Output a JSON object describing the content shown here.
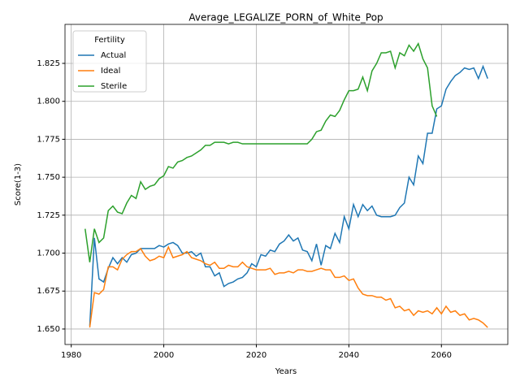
{
  "chart_data": {
    "type": "line",
    "title": "Average_LEGALIZE_PORN_of_White_Pop",
    "xlabel": "Years",
    "ylabel": "Score(1-3)",
    "x": [
      1983,
      1984,
      1985,
      1986,
      1987,
      1988,
      1989,
      1990,
      1991,
      1992,
      1993,
      1994,
      1995,
      1996,
      1997,
      1998,
      1999,
      2000,
      2001,
      2002,
      2003,
      2004,
      2005,
      2006,
      2007,
      2008,
      2009,
      2010,
      2011,
      2012,
      2013,
      2014,
      2015,
      2016,
      2017,
      2018,
      2019,
      2020,
      2021,
      2022,
      2023,
      2024,
      2025,
      2026,
      2027,
      2028,
      2029,
      2030,
      2031,
      2032,
      2033,
      2034,
      2035,
      2036,
      2037,
      2038,
      2039,
      2040,
      2041,
      2042,
      2043,
      2044,
      2045,
      2046,
      2047,
      2048,
      2049,
      2050,
      2051,
      2052,
      2053,
      2054,
      2055,
      2056,
      2057,
      2058,
      2059,
      2060,
      2061,
      2062,
      2063,
      2064,
      2065,
      2066,
      2067,
      2068,
      2069,
      2070
    ],
    "series": [
      {
        "name": "Actual",
        "color": "#1f77b4",
        "values": [
          null,
          1.652,
          1.71,
          1.683,
          1.681,
          1.69,
          1.697,
          1.693,
          1.697,
          1.694,
          1.699,
          1.7,
          1.703,
          1.703,
          1.703,
          1.703,
          1.705,
          1.704,
          1.706,
          1.707,
          1.705,
          1.7,
          1.7,
          1.701,
          1.698,
          1.7,
          1.691,
          1.691,
          1.685,
          1.687,
          1.678,
          1.68,
          1.681,
          1.683,
          1.684,
          1.687,
          1.693,
          1.691,
          1.699,
          1.698,
          1.702,
          1.701,
          1.706,
          1.708,
          1.712,
          1.708,
          1.71,
          1.702,
          1.701,
          1.695,
          1.706,
          1.692,
          1.705,
          1.703,
          1.713,
          1.707,
          1.724,
          1.716,
          1.732,
          1.724,
          1.732,
          1.728,
          1.731,
          1.725,
          1.724,
          1.724,
          1.724,
          1.725,
          1.73,
          1.733,
          1.75,
          1.745,
          1.764,
          1.759,
          1.779,
          1.779,
          1.795,
          1.797,
          1.808,
          1.813,
          1.817,
          1.819,
          1.822,
          1.821,
          1.822,
          1.815,
          1.823,
          1.815
        ]
      },
      {
        "name": "Ideal",
        "color": "#ff7f0e",
        "values": [
          null,
          1.651,
          1.674,
          1.673,
          1.676,
          1.691,
          1.691,
          1.689,
          1.696,
          1.699,
          1.701,
          1.701,
          1.703,
          1.698,
          1.695,
          1.696,
          1.698,
          1.697,
          1.704,
          1.697,
          1.698,
          1.699,
          1.701,
          1.697,
          1.696,
          1.695,
          1.693,
          1.692,
          1.694,
          1.69,
          1.69,
          1.692,
          1.691,
          1.691,
          1.694,
          1.691,
          1.69,
          1.689,
          1.689,
          1.689,
          1.69,
          1.686,
          1.687,
          1.687,
          1.688,
          1.687,
          1.689,
          1.689,
          1.688,
          1.688,
          1.689,
          1.69,
          1.689,
          1.689,
          1.684,
          1.684,
          1.685,
          1.682,
          1.683,
          1.677,
          1.673,
          1.672,
          1.672,
          1.671,
          1.671,
          1.669,
          1.67,
          1.664,
          1.665,
          1.662,
          1.663,
          1.659,
          1.662,
          1.661,
          1.662,
          1.66,
          1.664,
          1.66,
          1.665,
          1.661,
          1.662,
          1.659,
          1.66,
          1.656,
          1.657,
          1.656,
          1.654,
          1.651
        ]
      },
      {
        "name": "Sterile",
        "color": "#2ca02c",
        "values": [
          1.716,
          1.694,
          1.716,
          1.707,
          1.71,
          1.728,
          1.731,
          1.727,
          1.726,
          1.733,
          1.738,
          1.736,
          1.747,
          1.742,
          1.744,
          1.745,
          1.749,
          1.751,
          1.757,
          1.756,
          1.76,
          1.761,
          1.763,
          1.764,
          1.766,
          1.768,
          1.771,
          1.771,
          1.773,
          1.773,
          1.773,
          1.772,
          1.773,
          1.773,
          1.772,
          1.772,
          1.772,
          1.772,
          1.772,
          1.772,
          1.772,
          1.772,
          1.772,
          1.772,
          1.772,
          1.772,
          1.772,
          1.772,
          1.772,
          1.775,
          1.78,
          1.781,
          1.787,
          1.791,
          1.79,
          1.794,
          1.801,
          1.807,
          1.807,
          1.808,
          1.816,
          1.807,
          1.82,
          1.825,
          1.832,
          1.832,
          1.833,
          1.822,
          1.832,
          1.83,
          1.837,
          1.833,
          1.838,
          1.828,
          1.822,
          1.797,
          1.79,
          null,
          null,
          null,
          null,
          null,
          null,
          null,
          null,
          null,
          null,
          null
        ]
      }
    ],
    "xlim": [
      1978.65,
      2074.35
    ],
    "xticks": [
      1980,
      2000,
      2020,
      2040,
      2060
    ],
    "ylim": [
      1.6398,
      1.8507
    ],
    "yticks": [
      {
        "value": 1.65,
        "label": "1.650"
      },
      {
        "value": 1.675,
        "label": "1.675"
      },
      {
        "value": 1.7,
        "label": "1.700"
      },
      {
        "value": 1.725,
        "label": "1.725"
      },
      {
        "value": 1.75,
        "label": "1.750"
      },
      {
        "value": 1.775,
        "label": "1.775"
      },
      {
        "value": 1.8,
        "label": "1.800"
      },
      {
        "value": 1.825,
        "label": "1.825"
      }
    ],
    "grid": true,
    "legend_title": "Fertility",
    "legend_position": "upper-left"
  }
}
